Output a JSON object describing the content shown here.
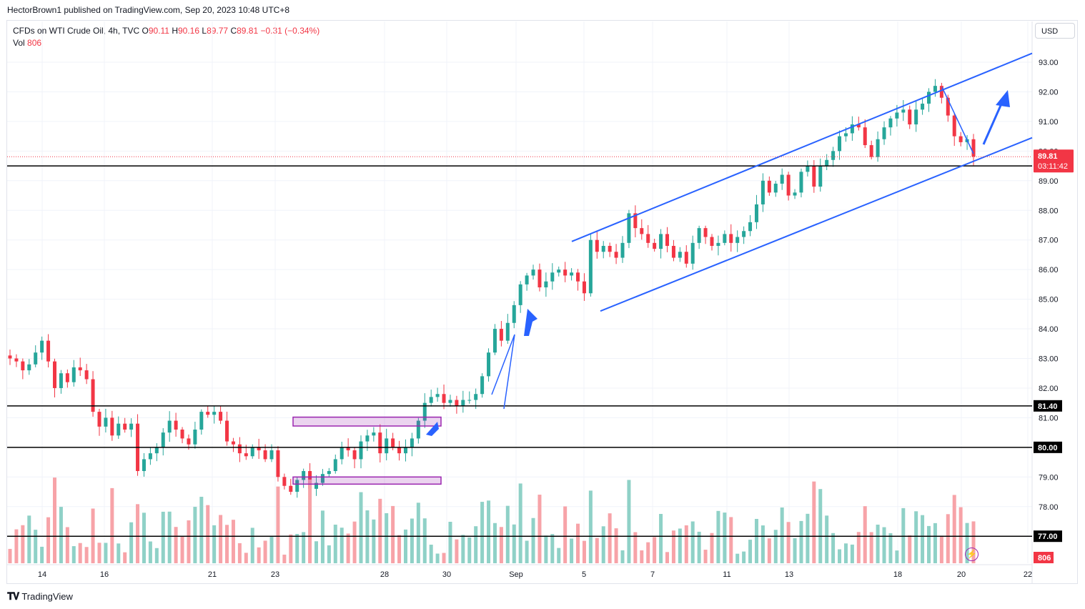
{
  "header": {
    "publisher_line": "HectorBrown1 published on TradingView.com, Sep 20, 2023 10:48 UTC+8"
  },
  "legend": {
    "symbol": "CFDs on WTI Crude Oil, 4h, TVC",
    "o_label": "O",
    "o_value": "90.11",
    "h_label": "H",
    "h_value": "90.16",
    "l_label": "L",
    "l_value": "89.77",
    "c_label": "C",
    "c_value": "89.81",
    "change": "−0.31 (−0.34%)",
    "vol_label": "Vol",
    "vol_value": "806"
  },
  "currency_button": "USD",
  "footer": {
    "brand": "TradingView"
  },
  "colors": {
    "up": "#26a69a",
    "down": "#f23645",
    "up_vol": "#8fd1c7",
    "down_vol": "#f7a3a8",
    "trendline": "#2962ff",
    "zone": "#9c27b0"
  },
  "chart_data": {
    "type": "candlestick",
    "price_axis": {
      "range": [
        76.0,
        93.4
      ],
      "ticks": [
        "93.00",
        "92.00",
        "91.00",
        "90.00",
        "89.00",
        "88.00",
        "87.00",
        "86.00",
        "85.00",
        "84.00",
        "83.00",
        "82.00",
        "81.00",
        "80.00",
        "79.00",
        "78.00",
        "77.00"
      ]
    },
    "time_axis": {
      "ticks": [
        "14",
        "16",
        "21",
        "23",
        "28",
        "30",
        "Sep",
        "5",
        "7",
        "11",
        "13",
        "18",
        "20",
        "22"
      ]
    },
    "current_price": {
      "value": 89.81,
      "label": "89.81",
      "countdown": "03:11:42"
    },
    "volume_label": "806",
    "horizontal_levels": [
      {
        "value": 89.5,
        "label": "89.50"
      },
      {
        "value": 81.4,
        "label": "81.40"
      },
      {
        "value": 80.0,
        "label": "80.00"
      },
      {
        "value": 77.0,
        "label": "77.00"
      }
    ],
    "zones": [
      {
        "from": 80.72,
        "to": 81.02
      },
      {
        "from": 78.82,
        "to": 79.0
      }
    ],
    "channel": {
      "upper": [
        [
          86.95,
          93.3
        ]
      ],
      "lower": [
        [
          84.6,
          90.45
        ]
      ]
    },
    "closes": [
      83.0,
      82.9,
      82.6,
      82.8,
      83.2,
      83.6,
      82.9,
      82.0,
      82.5,
      82.2,
      82.7,
      82.6,
      82.3,
      81.2,
      80.7,
      81.0,
      80.4,
      80.8,
      80.6,
      80.8,
      79.2,
      79.6,
      79.8,
      80.0,
      80.5,
      80.9,
      80.6,
      80.3,
      80.1,
      80.6,
      81.2,
      81.1,
      81.2,
      80.9,
      80.2,
      80.1,
      79.8,
      79.7,
      80.0,
      79.9,
      79.6,
      79.9,
      79.0,
      78.7,
      78.5,
      78.9,
      79.2,
      78.6,
      78.8,
      79.1,
      79.2,
      79.6,
      80.0,
      79.9,
      79.6,
      80.2,
      80.4,
      80.5,
      79.8,
      80.3,
      80.0,
      79.8,
      80.0,
      80.3,
      80.9,
      81.5,
      81.7,
      81.8,
      81.5,
      81.6,
      81.4,
      81.6,
      81.6,
      81.8,
      82.4,
      83.2,
      84.0,
      83.6,
      84.2,
      84.8,
      85.5,
      85.8,
      86.0,
      85.4,
      85.6,
      85.9,
      86.0,
      85.8,
      85.9,
      85.6,
      85.2,
      87.0,
      86.6,
      86.8,
      86.6,
      86.4,
      86.9,
      87.9,
      87.4,
      87.2,
      86.9,
      86.7,
      87.2,
      86.8,
      86.4,
      86.6,
      86.2,
      86.9,
      87.4,
      87.1,
      86.8,
      86.9,
      87.2,
      86.9,
      87.1,
      87.3,
      87.6,
      88.2,
      89.0,
      88.6,
      88.9,
      89.2,
      88.5,
      88.6,
      89.3,
      89.5,
      88.8,
      89.5,
      89.7,
      90.0,
      90.5,
      90.6,
      90.9,
      90.8,
      90.2,
      89.8,
      90.4,
      90.8,
      91.1,
      91.3,
      91.4,
      90.9,
      91.4,
      91.6,
      92.0,
      92.2,
      91.8,
      91.2,
      90.5,
      90.3,
      90.4,
      89.81
    ]
  }
}
